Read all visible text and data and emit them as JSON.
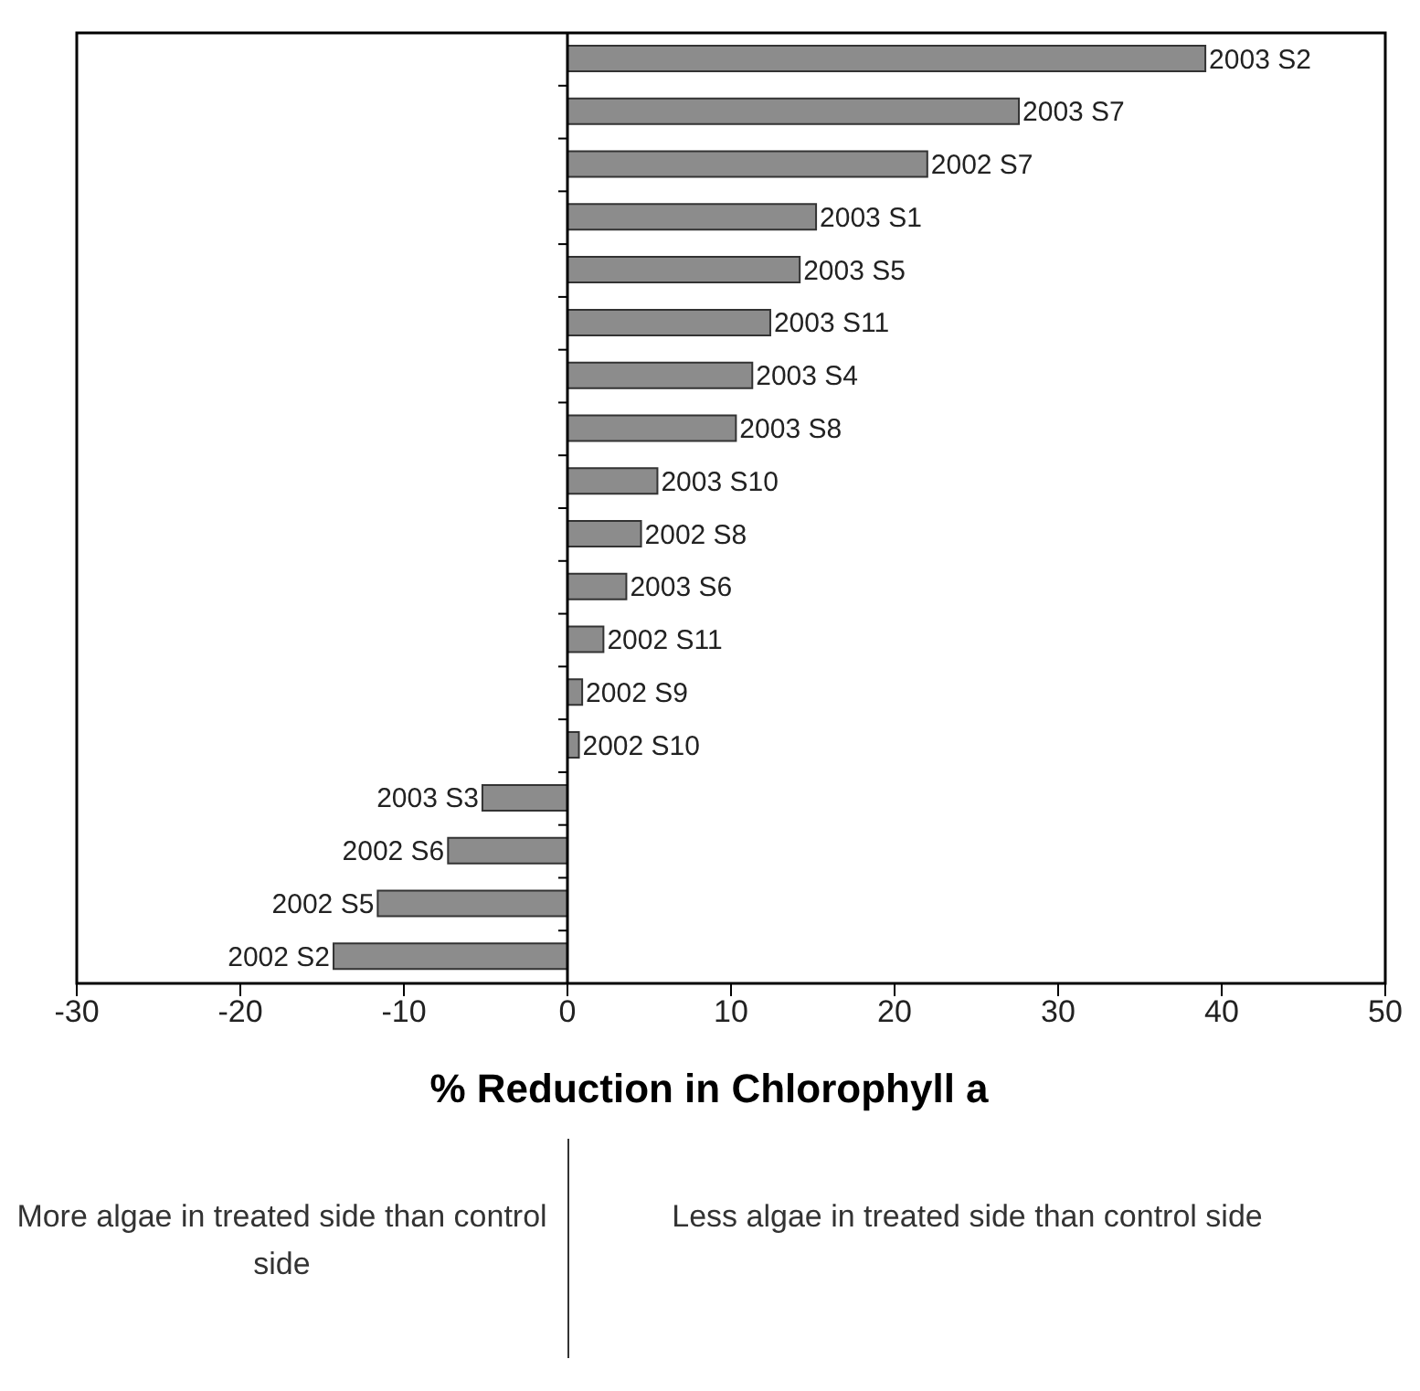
{
  "chart_data": {
    "type": "bar",
    "orientation": "horizontal",
    "xlabel": "% Reduction in Chlorophyll a",
    "categories": [
      "2003 S2",
      "2003 S7",
      "2002 S7",
      "2003 S1",
      "2003 S5",
      "2003 S11",
      "2003 S4",
      "2003 S8",
      "2003 S10",
      "2002 S8",
      "2003 S6",
      "2002 S11",
      "2002 S9",
      "2002 S10",
      "2003 S3",
      "2002 S6",
      "2002 S5",
      "2002 S2"
    ],
    "values": [
      39.0,
      27.6,
      22.0,
      15.2,
      14.2,
      12.4,
      11.3,
      10.3,
      5.5,
      4.5,
      3.6,
      2.2,
      0.9,
      0.7,
      -5.2,
      -7.3,
      -11.6,
      -14.3
    ],
    "color": "#8c8c8c",
    "xlim": [
      -30,
      50
    ],
    "xticks": [
      -30,
      -20,
      -10,
      0,
      10,
      20,
      30,
      40,
      50
    ],
    "grid": false,
    "legend": false,
    "annotations": [
      "More algae in treated side than control side",
      "Less algae in treated side than control side"
    ]
  }
}
